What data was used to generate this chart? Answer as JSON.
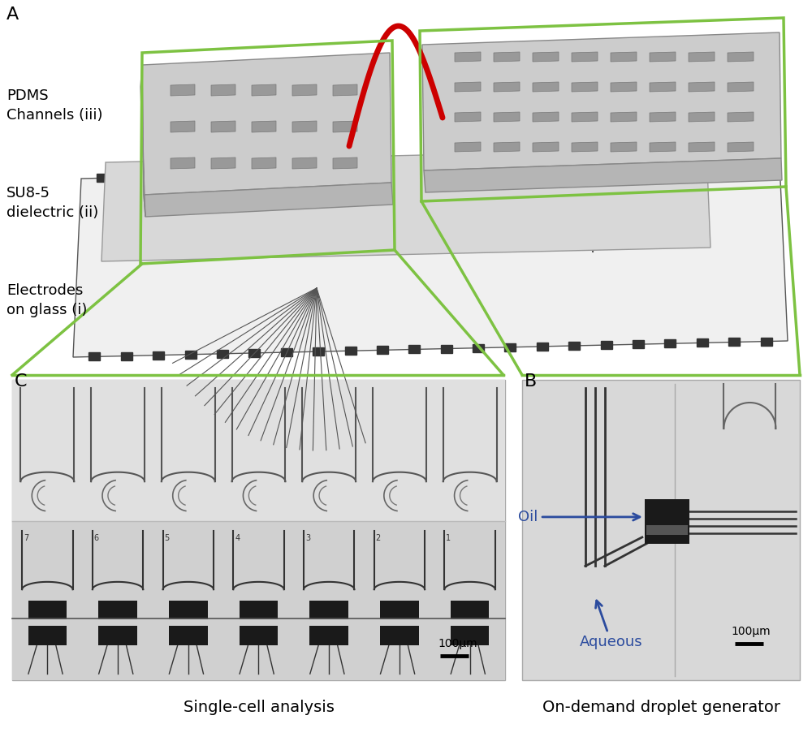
{
  "panel_A_label": "A",
  "panel_B_label": "B",
  "panel_C_label": "C",
  "label_pdms": "PDMS\nChannels (iii)",
  "label_su8": "SU8-5\ndielectric (ii)",
  "label_electrodes": "Electrodes\non glass (i)",
  "label_oil": "Oil",
  "label_aqueous": "Aqueous",
  "label_scale_um": "100μm",
  "label_C_caption": "Single-cell analysis",
  "label_B_caption": "On-demand droplet generator",
  "green_color": "#7dc242",
  "arrow_color": "#2b4b9e",
  "red_color": "#cc0000",
  "bg_color": "#ffffff",
  "label_fontsize": 13,
  "caption_fontsize": 14,
  "panel_label_fontsize": 16
}
